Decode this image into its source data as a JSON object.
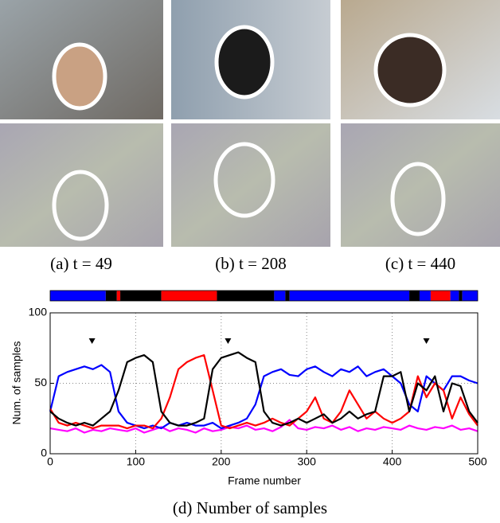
{
  "captions": [
    "(a) t = 49",
    "(b) t = 208",
    "(c) t = 440"
  ],
  "chart_data": {
    "type": "line",
    "caption": "(d) Number of samples",
    "xlabel": "Frame number",
    "ylabel": "Num. of samples",
    "xlim": [
      0,
      500
    ],
    "ylim": [
      0,
      100
    ],
    "xticks": [
      0,
      100,
      200,
      300,
      400,
      500
    ],
    "yticks": [
      0,
      50,
      100
    ],
    "grid": true,
    "markers": [
      49,
      208,
      440
    ],
    "top_bar": [
      {
        "start": 0,
        "end": 65,
        "color": "#0000ff"
      },
      {
        "start": 65,
        "end": 78,
        "color": "#000000"
      },
      {
        "start": 78,
        "end": 82,
        "color": "#ff0000"
      },
      {
        "start": 82,
        "end": 130,
        "color": "#000000"
      },
      {
        "start": 130,
        "end": 195,
        "color": "#ff0000"
      },
      {
        "start": 195,
        "end": 262,
        "color": "#000000"
      },
      {
        "start": 262,
        "end": 275,
        "color": "#0000ff"
      },
      {
        "start": 275,
        "end": 280,
        "color": "#000000"
      },
      {
        "start": 280,
        "end": 420,
        "color": "#0000ff"
      },
      {
        "start": 420,
        "end": 432,
        "color": "#000000"
      },
      {
        "start": 432,
        "end": 445,
        "color": "#0000ff"
      },
      {
        "start": 445,
        "end": 468,
        "color": "#ff0000"
      },
      {
        "start": 468,
        "end": 478,
        "color": "#0000ff"
      },
      {
        "start": 478,
        "end": 482,
        "color": "#000000"
      },
      {
        "start": 482,
        "end": 500,
        "color": "#0000ff"
      }
    ],
    "x": [
      0,
      10,
      20,
      30,
      40,
      50,
      60,
      70,
      80,
      90,
      100,
      110,
      120,
      130,
      140,
      150,
      160,
      170,
      180,
      190,
      200,
      210,
      220,
      230,
      240,
      250,
      260,
      270,
      280,
      290,
      300,
      310,
      320,
      330,
      340,
      350,
      360,
      370,
      380,
      390,
      400,
      410,
      420,
      430,
      440,
      450,
      460,
      470,
      480,
      490,
      500
    ],
    "series": [
      {
        "color": "#ff00ff",
        "values": [
          18,
          17,
          16,
          18,
          15,
          17,
          16,
          18,
          17,
          16,
          18,
          15,
          17,
          19,
          16,
          18,
          17,
          15,
          18,
          16,
          17,
          19,
          18,
          20,
          17,
          18,
          16,
          19,
          24,
          18,
          17,
          19,
          18,
          20,
          17,
          19,
          16,
          18,
          17,
          19,
          18,
          17,
          20,
          18,
          17,
          19,
          18,
          20,
          17,
          18,
          16
        ]
      },
      {
        "color": "#0000ff",
        "values": [
          30,
          55,
          58,
          60,
          62,
          60,
          63,
          58,
          30,
          22,
          20,
          18,
          20,
          18,
          22,
          20,
          22,
          20,
          20,
          22,
          18,
          20,
          22,
          25,
          35,
          55,
          58,
          60,
          56,
          55,
          60,
          62,
          58,
          55,
          60,
          58,
          62,
          55,
          58,
          60,
          55,
          50,
          35,
          30,
          55,
          50,
          45,
          55,
          55,
          52,
          50
        ]
      },
      {
        "color": "#ff0000",
        "values": [
          32,
          22,
          20,
          22,
          20,
          18,
          20,
          20,
          20,
          18,
          20,
          20,
          18,
          25,
          40,
          60,
          65,
          68,
          70,
          45,
          20,
          18,
          20,
          22,
          20,
          22,
          25,
          22,
          20,
          25,
          30,
          40,
          25,
          22,
          30,
          45,
          35,
          25,
          30,
          25,
          22,
          25,
          30,
          55,
          40,
          50,
          45,
          25,
          40,
          28,
          20
        ]
      },
      {
        "color": "#000000",
        "values": [
          30,
          25,
          22,
          20,
          22,
          20,
          25,
          30,
          45,
          65,
          68,
          70,
          65,
          30,
          22,
          20,
          20,
          22,
          25,
          60,
          68,
          70,
          72,
          68,
          65,
          30,
          22,
          20,
          22,
          25,
          22,
          25,
          28,
          22,
          25,
          30,
          25,
          28,
          30,
          55,
          55,
          58,
          30,
          50,
          45,
          55,
          30,
          50,
          48,
          30,
          22
        ]
      }
    ]
  }
}
